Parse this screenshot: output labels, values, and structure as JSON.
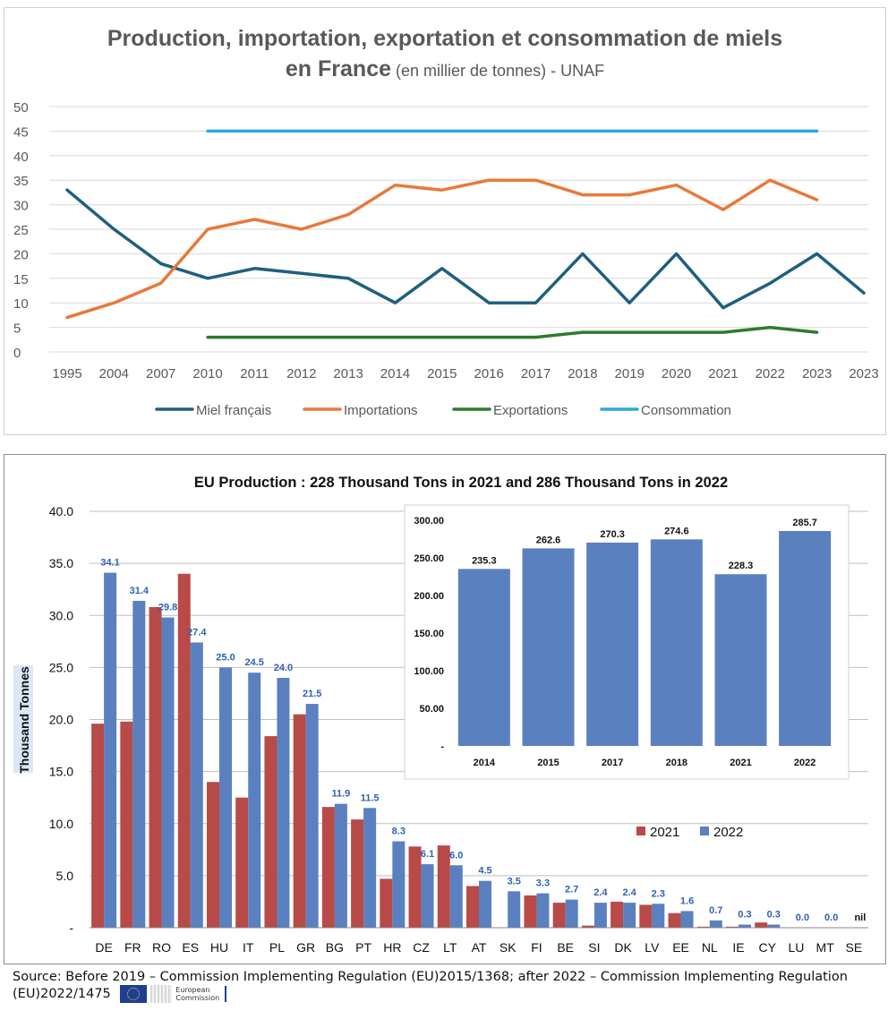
{
  "chart_data": [
    {
      "type": "line",
      "title": "Production, importation, exportation et consommation de miels",
      "title_line2_bold": "en France",
      "title_line2_rest": " (en millier de tonnes) - UNAF",
      "categories": [
        "1995",
        "2004",
        "2007",
        "2010",
        "2011",
        "2012",
        "2013",
        "2014",
        "2015",
        "2016",
        "2017",
        "2018",
        "2019",
        "2020",
        "2021",
        "2022",
        "2023",
        "2023"
      ],
      "ylim": [
        0,
        50
      ],
      "yticks": [
        0,
        5,
        10,
        15,
        20,
        25,
        30,
        35,
        40,
        45,
        50
      ],
      "grid": true,
      "legend_position": "bottom",
      "series": [
        {
          "name": "Miel français",
          "color": "#1f5f7f",
          "values": [
            33,
            25,
            18,
            15,
            17,
            16,
            15,
            10,
            17,
            10,
            10,
            20,
            10,
            20,
            9,
            14,
            20,
            12
          ]
        },
        {
          "name": "Importations",
          "color": "#e8793a",
          "values": [
            7,
            10,
            14,
            25,
            27,
            25,
            28,
            34,
            33,
            35,
            35,
            32,
            32,
            34,
            29,
            35,
            31,
            null
          ]
        },
        {
          "name": "Exportations",
          "color": "#2e7a2e",
          "values": [
            null,
            null,
            null,
            3,
            3,
            3,
            3,
            3,
            3,
            3,
            3,
            4,
            4,
            4,
            4,
            5,
            4,
            null
          ]
        },
        {
          "name": "Consommation",
          "color": "#32a6da",
          "values": [
            null,
            null,
            null,
            45,
            45,
            45,
            45,
            45,
            45,
            45,
            45,
            45,
            45,
            45,
            45,
            45,
            45,
            null
          ]
        }
      ]
    },
    {
      "type": "bar",
      "title": "EU Production : 228 Thousand Tons in 2021 and 286 Thousand Tons in 2022",
      "ylabel": "Thousand Tonnes",
      "ylim": [
        0,
        40
      ],
      "yticks": [
        "-",
        "5.0",
        "10.0",
        "15.0",
        "20.0",
        "25.0",
        "30.0",
        "35.0",
        "40.0"
      ],
      "categories": [
        "DE",
        "FR",
        "RO",
        "ES",
        "HU",
        "IT",
        "PL",
        "GR",
        "BG",
        "PT",
        "HR",
        "CZ",
        "LT",
        "AT",
        "SK",
        "FI",
        "BE",
        "SI",
        "DK",
        "LV",
        "EE",
        "NL",
        "IE",
        "CY",
        "LU",
        "MT",
        "SE"
      ],
      "legend_position": "right",
      "series": [
        {
          "name": "2021",
          "color": "#b84a47",
          "values": [
            19.6,
            19.8,
            30.8,
            34.0,
            14.0,
            12.5,
            18.4,
            20.5,
            11.6,
            10.4,
            4.7,
            7.8,
            7.9,
            4.0,
            0,
            3.1,
            2.4,
            0.2,
            2.5,
            2.2,
            1.4,
            0.1,
            0.1,
            0.5,
            0,
            0,
            0
          ]
        },
        {
          "name": "2022",
          "color": "#5a80c0",
          "values": [
            34.1,
            31.4,
            29.8,
            27.4,
            25.0,
            24.5,
            24.0,
            21.5,
            11.9,
            11.5,
            8.3,
            6.1,
            6.0,
            4.5,
            3.5,
            3.3,
            2.7,
            2.4,
            2.4,
            2.3,
            1.6,
            0.7,
            0.3,
            0.3,
            0.0,
            0.0,
            null
          ]
        }
      ],
      "labels_2022": [
        "34.1",
        "31.4",
        "29.8",
        "27.4",
        "25.0",
        "24.5",
        "24.0",
        "21.5",
        "11.9",
        "11.5",
        "8.3",
        "6.1",
        "6.0",
        "4.5",
        "3.5",
        "3.3",
        "2.7",
        "2.4",
        "2.4",
        "2.3",
        "1.6",
        "0.7",
        "0.3",
        "0.3",
        "0.0",
        "0.0",
        "nil"
      ]
    },
    {
      "type": "bar",
      "categories": [
        "2014",
        "2015",
        "2017",
        "2018",
        "2021",
        "2022"
      ],
      "values": [
        235.3,
        262.6,
        270.3,
        274.6,
        228.3,
        285.7
      ],
      "value_labels": [
        "235.3",
        "262.6",
        "270.3",
        "274.6",
        "228.3",
        "285.7"
      ],
      "ylim": [
        0,
        300
      ],
      "yticks": [
        "-",
        "50.00",
        "100.00",
        "150.00",
        "200.00",
        "250.00",
        "300.00"
      ],
      "color": "#5a80c0"
    }
  ],
  "source": {
    "text": "Source: Before 2019 – Commission  Implementing Regulation (EU)2015/1368; after 2022 – Commission Implementing Regulation (EU)2022/1475",
    "logo_line1": "European",
    "logo_line2": "Commission"
  }
}
